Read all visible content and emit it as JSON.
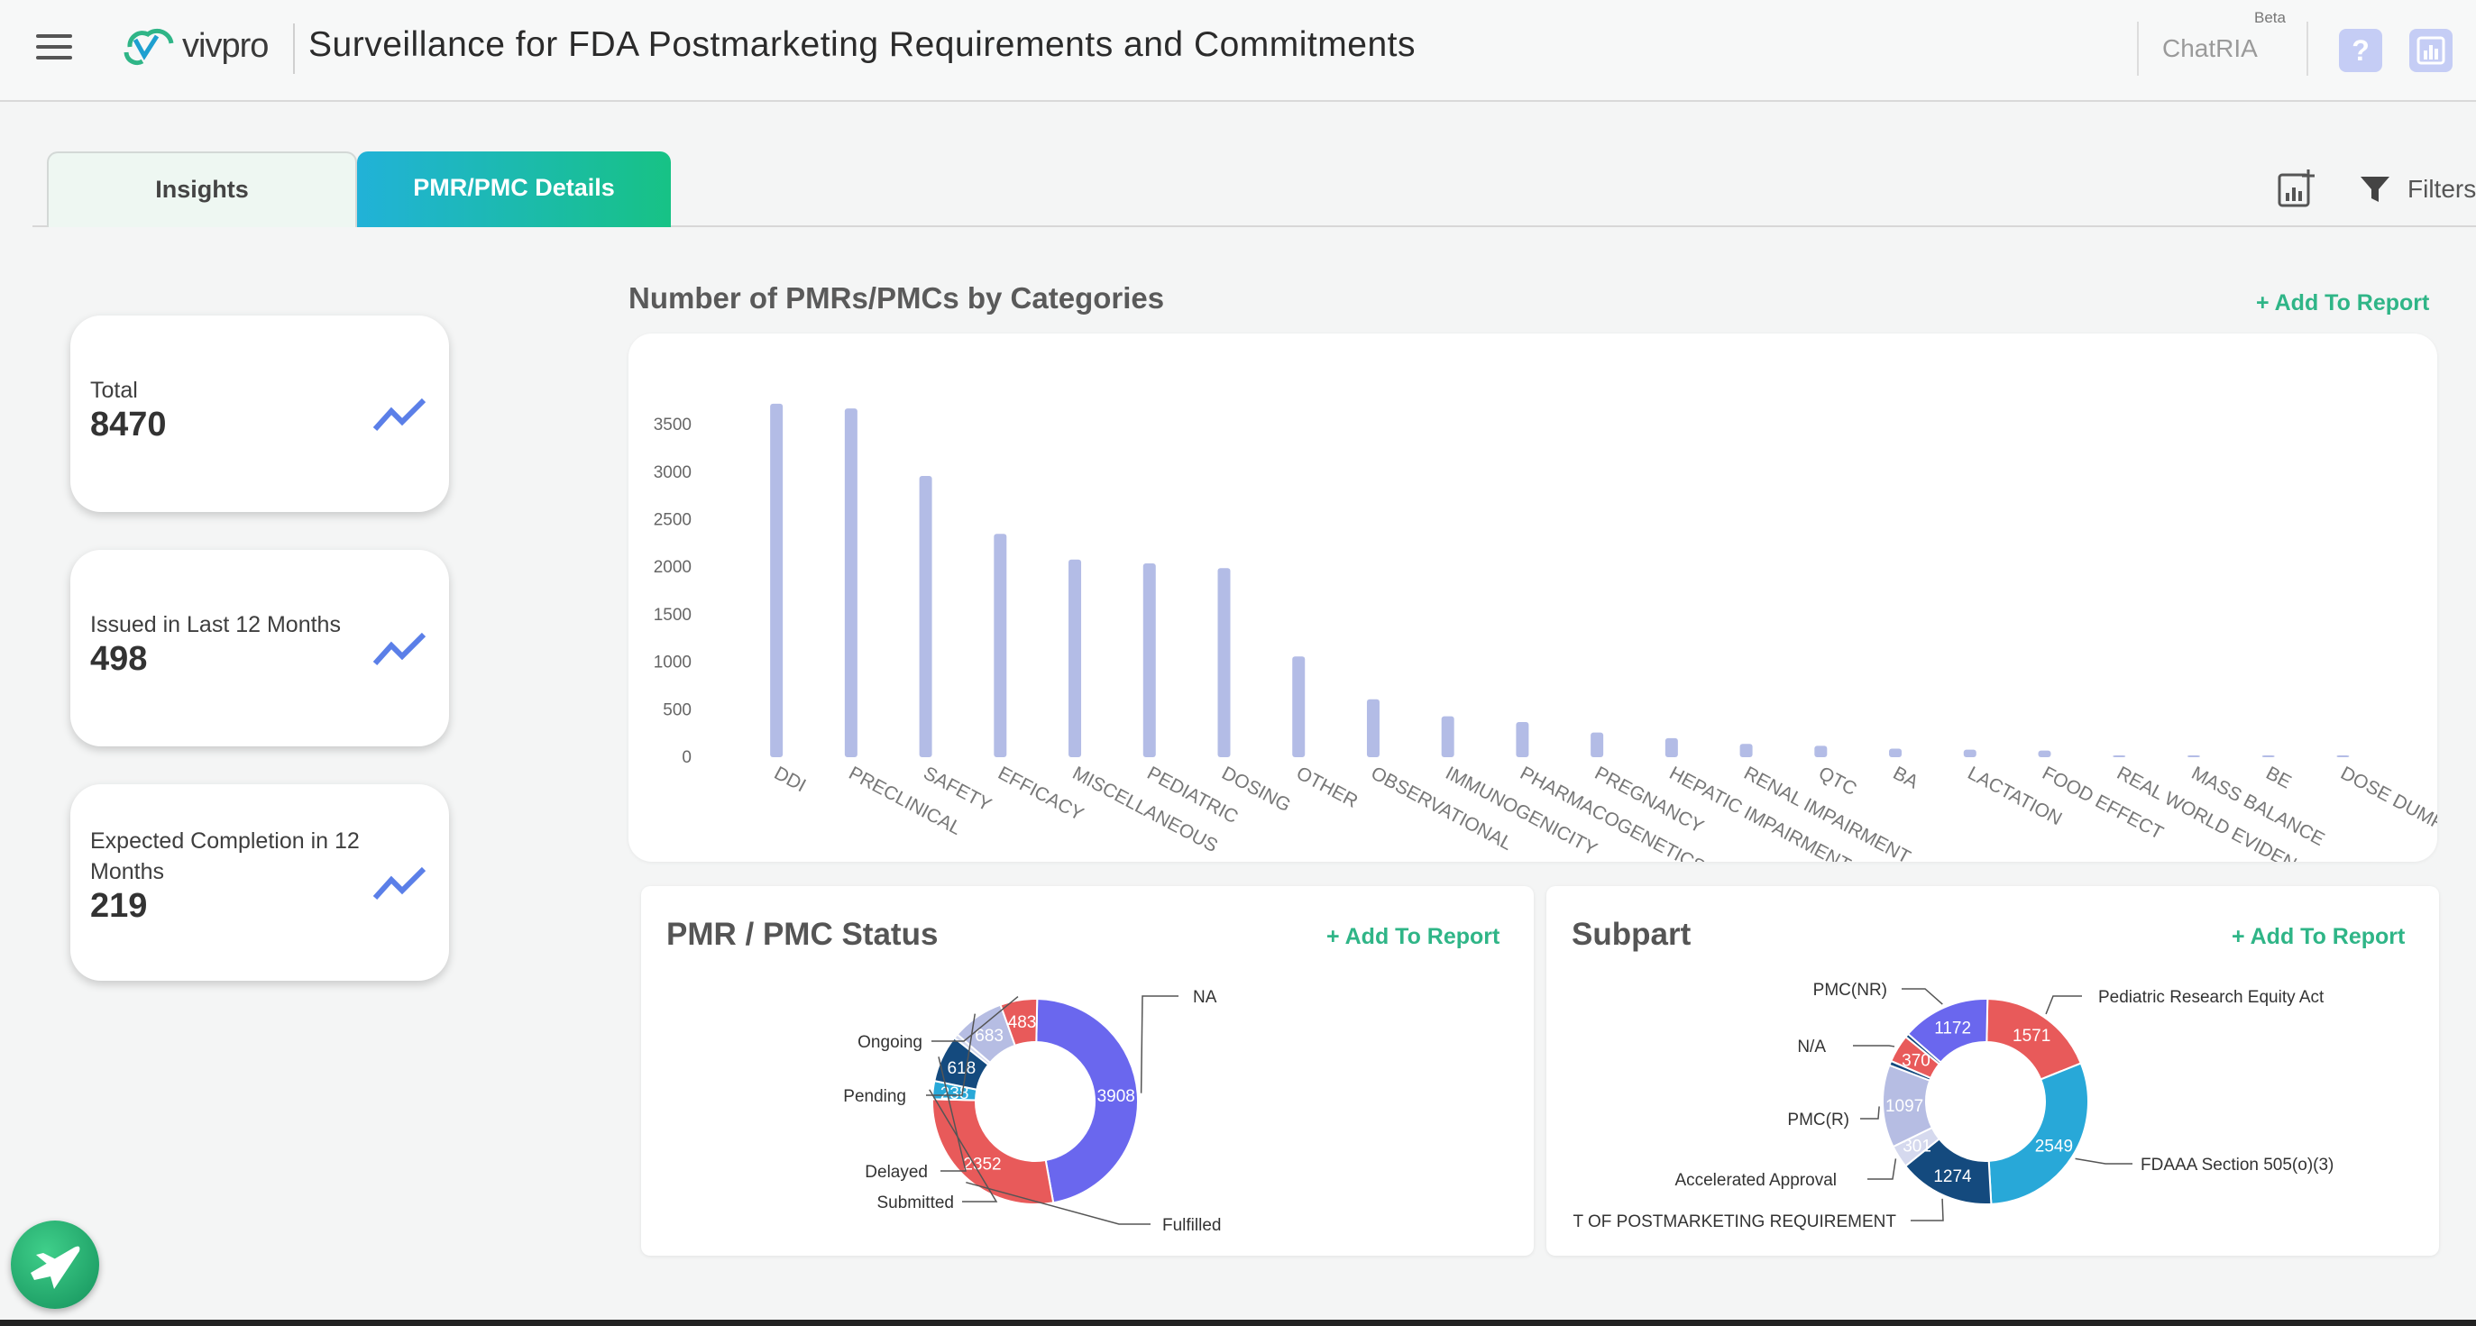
{
  "header": {
    "logo_text": "vivpro",
    "title": "Surveillance for FDA Postmarketing Requirements and Commitments",
    "chatria_label": "ChatRIA",
    "beta_label": "Beta",
    "help_icon": "question-icon"
  },
  "tabs": [
    {
      "label": "Insights",
      "active": false
    },
    {
      "label": "PMR/PMC Details",
      "active": true
    }
  ],
  "toolbar": {
    "filters_label": "Filters"
  },
  "kpis": [
    {
      "label": "Total",
      "value": "8470"
    },
    {
      "label": "Issued in Last 12 Months",
      "value": "498"
    },
    {
      "label": "Expected Completion in 12 Months",
      "value": "219"
    }
  ],
  "add_to_report_label": "+ Add To Report",
  "colors": {
    "accent_green": "#2fb587",
    "bar": "#b3bce6",
    "tab_gradient_start": "#21b2d8",
    "tab_gradient_end": "#17c285"
  },
  "chart_data": [
    {
      "type": "bar",
      "title": "Number of PMRs/PMCs by Categories",
      "categories": [
        "DDI",
        "PRECLINICAL",
        "SAFETY",
        "EFFICACY",
        "MISCELLANEOUS",
        "PEDIATRIC",
        "DOSING",
        "OTHER",
        "OBSERVATIONAL",
        "IMMUNOGENICITY",
        "PHARMACOGENETICS",
        "PREGNANCY",
        "HEPATIC IMPAIRMENT",
        "RENAL IMPAIRMENT",
        "QTC",
        "BA",
        "LACTATION",
        "FOOD EFFECT",
        "REAL WORLD EVIDENCE",
        "MASS BALANCE",
        "BE",
        "DOSE DUMPING"
      ],
      "values": [
        3720,
        3670,
        2960,
        2350,
        2080,
        2040,
        1990,
        1060,
        610,
        430,
        370,
        260,
        200,
        140,
        120,
        90,
        80,
        70,
        15,
        12,
        8,
        5
      ],
      "ylim": [
        0,
        3700
      ],
      "yticks": [
        0,
        500,
        1000,
        1500,
        2000,
        2500,
        3000,
        3500
      ],
      "grid": false
    },
    {
      "type": "pie",
      "title": "PMR / PMC Status",
      "slices": [
        {
          "label": "NA",
          "value": 3908,
          "color": "#6a67ee"
        },
        {
          "label": "Fulfilled",
          "value": 2352,
          "color": "#e85a5a"
        },
        {
          "label": "Submitted",
          "value": 238,
          "color": "#28a8d8"
        },
        {
          "label": "Delayed",
          "value": 618,
          "color": "#144a7e"
        },
        {
          "label": "",
          "value": 60,
          "color": "#d5d9ee"
        },
        {
          "label": "Pending",
          "value": 683,
          "color": "#b6bde3"
        },
        {
          "label": "Ongoing",
          "value": 483,
          "color": "#e85a5a"
        }
      ]
    },
    {
      "type": "pie",
      "title": "Subpart",
      "slices": [
        {
          "label": "Pediatric Research Equity Act",
          "value": 1571,
          "color": "#e85a5a"
        },
        {
          "label": "FDAAA Section 505(o)(3)",
          "value": 2549,
          "color": "#28a8d8"
        },
        {
          "label": "T OF POSTMARKETING REQUIREMENT",
          "value": 1274,
          "color": "#144a7e"
        },
        {
          "label": "Accelerated Approval",
          "value": 301,
          "color": "#d5d9ee"
        },
        {
          "label": "PMC(R)",
          "value": 1097,
          "color": "#b6bde3"
        },
        {
          "label": "",
          "value": 60,
          "color": "#144a7e"
        },
        {
          "label": "N/A",
          "value": 370,
          "color": "#e85a5a"
        },
        {
          "label": "",
          "value": 50,
          "color": "#144a7e"
        },
        {
          "label": "PMC(NR)",
          "value": 1172,
          "color": "#6a67ee"
        }
      ]
    }
  ]
}
